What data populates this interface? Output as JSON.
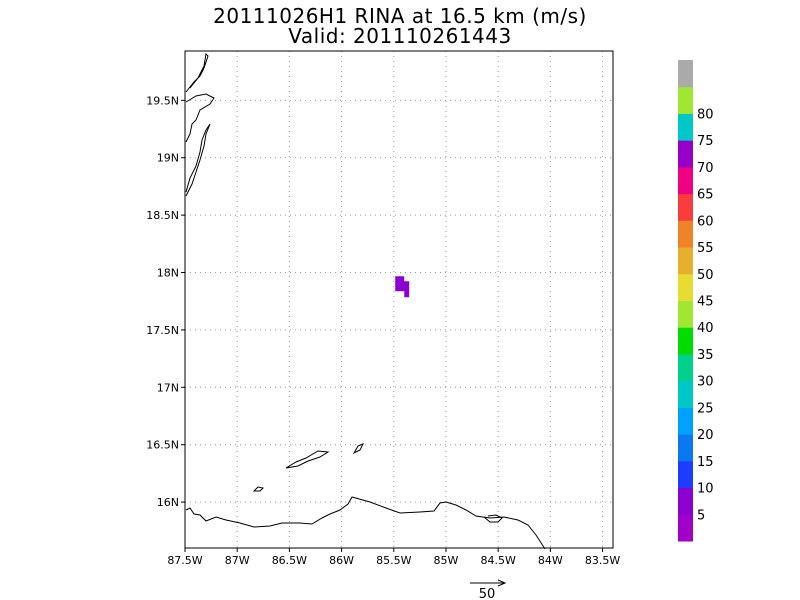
{
  "title": {
    "line1": "20111026H1 RINA at 16.5 km (m/s)",
    "line2": "Valid: 201110261443"
  },
  "map": {
    "lon_range": [
      -87.5,
      -83.4
    ],
    "lat_range": [
      15.6,
      19.93
    ],
    "x_ticks": [
      {
        "lon": -87.5,
        "label": "87.5W"
      },
      {
        "lon": -87.0,
        "label": "87W"
      },
      {
        "lon": -86.5,
        "label": "86.5W"
      },
      {
        "lon": -86.0,
        "label": "86W"
      },
      {
        "lon": -85.5,
        "label": "85.5W"
      },
      {
        "lon": -85.0,
        "label": "85W"
      },
      {
        "lon": -84.5,
        "label": "84.5W"
      },
      {
        "lon": -84.0,
        "label": "84W"
      },
      {
        "lon": -83.5,
        "label": "83.5W"
      }
    ],
    "y_ticks": [
      {
        "lat": 16.0,
        "label": "16N"
      },
      {
        "lat": 16.5,
        "label": "16.5N"
      },
      {
        "lat": 17.0,
        "label": "17N"
      },
      {
        "lat": 17.5,
        "label": "17.5N"
      },
      {
        "lat": 18.0,
        "label": "18N"
      },
      {
        "lat": 18.5,
        "label": "18.5N"
      },
      {
        "lat": 19.0,
        "label": "19N"
      },
      {
        "lat": 19.5,
        "label": "19.5N"
      }
    ],
    "grid": "dotted",
    "data_patch": {
      "lon": -85.4,
      "lat": 17.88,
      "color": "#8c00d2"
    }
  },
  "vector_key": {
    "label": "50"
  },
  "colorbar": {
    "labels": [
      "5",
      "10",
      "15",
      "20",
      "25",
      "30",
      "35",
      "40",
      "45",
      "50",
      "55",
      "60",
      "65",
      "70",
      "75",
      "80"
    ],
    "colors": [
      "#a000c8",
      "#8c00d2",
      "#1e3cff",
      "#0a78f0",
      "#00a0ff",
      "#00c8c8",
      "#00d28c",
      "#00dc00",
      "#a0e632",
      "#e6dc32",
      "#e6af2d",
      "#f08228",
      "#fa3c3c",
      "#f00082",
      "#9600c8",
      "#00c8c8",
      "#a0e632",
      "#aaaaaa"
    ]
  }
}
